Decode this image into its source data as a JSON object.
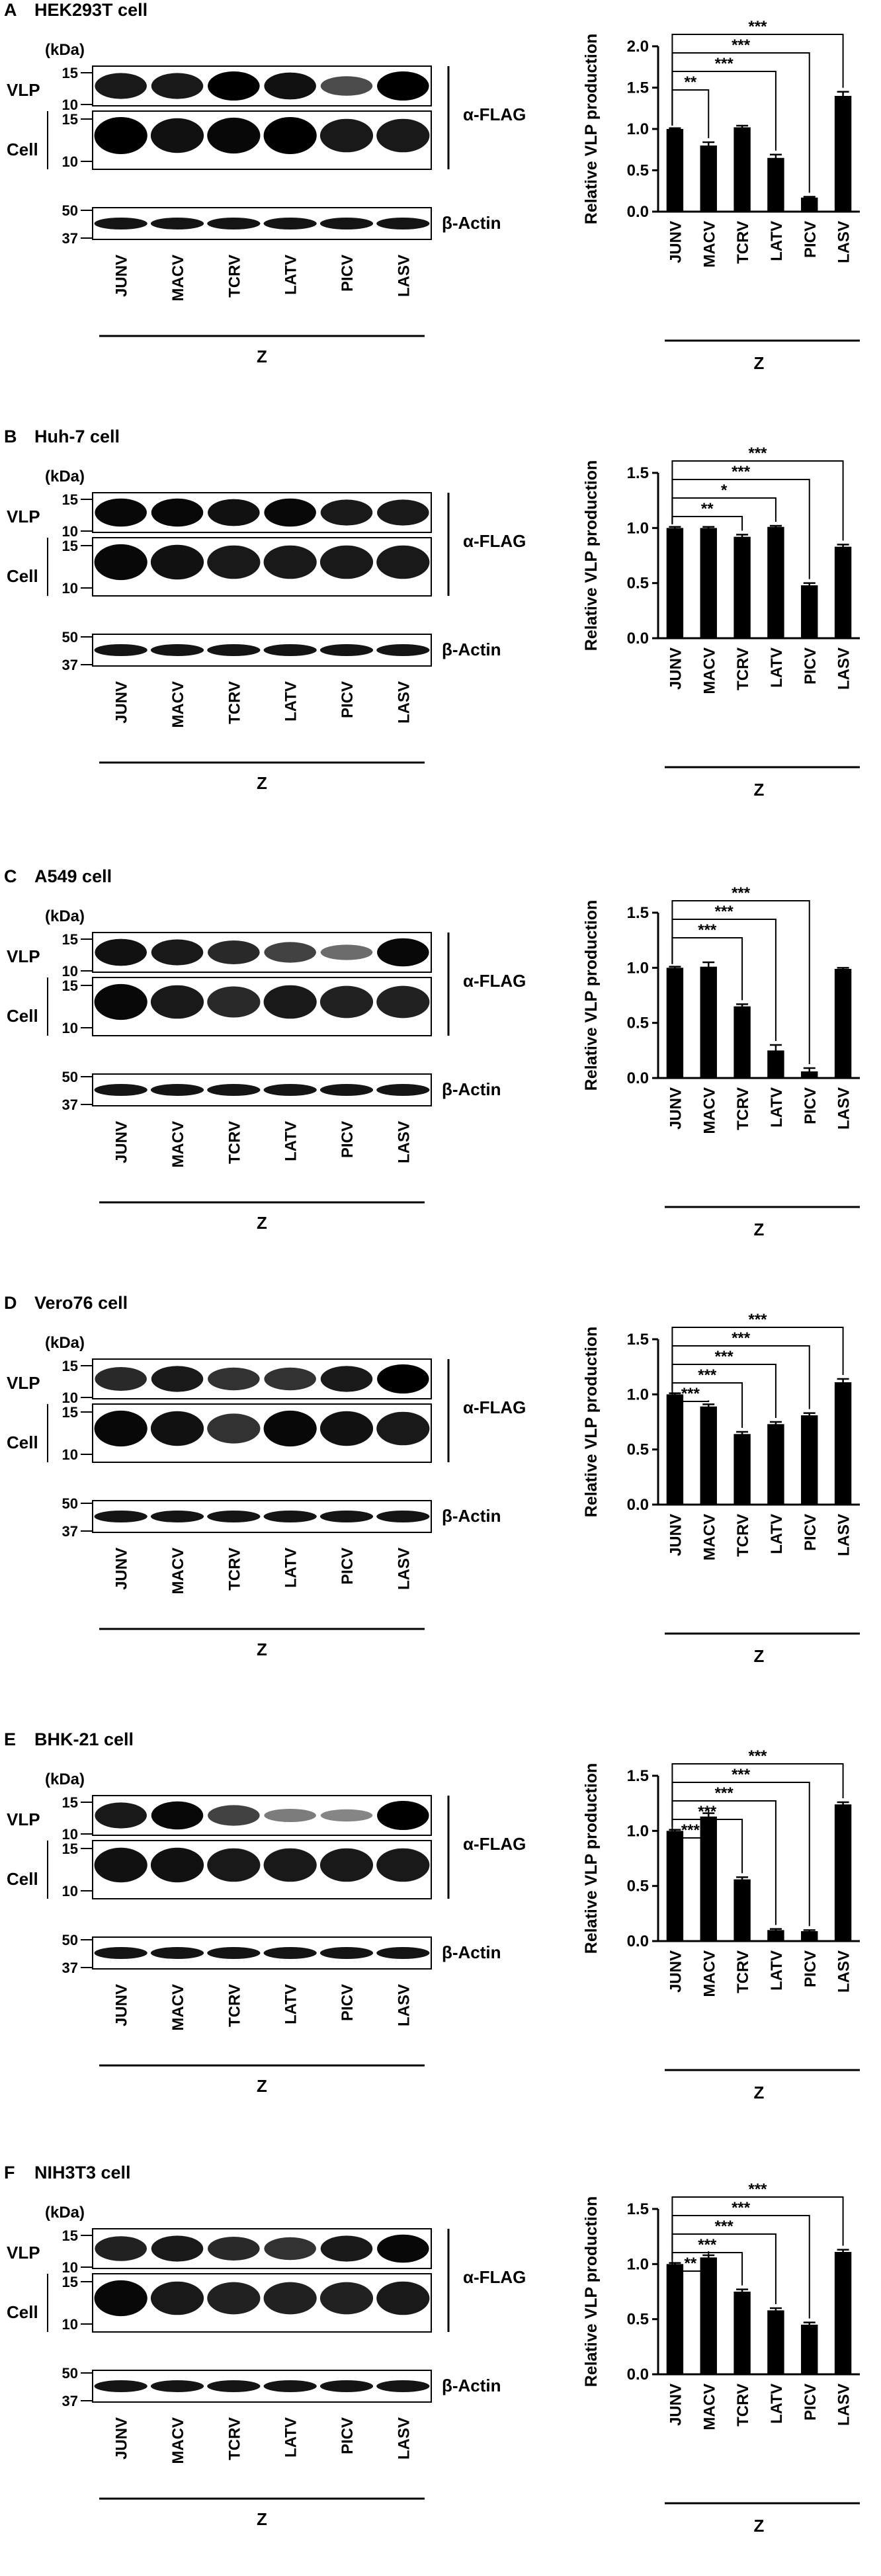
{
  "labels": {
    "kda": "(kDa)",
    "vlp": "VLP",
    "cell": "Cell",
    "flag": "α-FLAG",
    "actin": "β-Actin",
    "z": "Z",
    "ylabel": "Relative VLP production",
    "markers": [
      "15",
      "10",
      "15",
      "10",
      "50",
      "37"
    ]
  },
  "lanes": [
    "JUNV",
    "MACV",
    "TCRV",
    "LATV",
    "PICV",
    "LASV"
  ],
  "panels": [
    {
      "letter": "A",
      "title": "HEK293T cell"
    },
    {
      "letter": "B",
      "title": "Huh-7 cell"
    },
    {
      "letter": "C",
      "title": "A549 cell"
    },
    {
      "letter": "D",
      "title": "Vero76 cell"
    },
    {
      "letter": "E",
      "title": "BHK-21 cell"
    },
    {
      "letter": "F",
      "title": "NIH3T3 cell"
    }
  ],
  "blots": [
    {
      "vlp": [
        0.85,
        0.85,
        1.0,
        0.9,
        0.55,
        1.0
      ],
      "cell": [
        1.0,
        0.9,
        0.95,
        1.0,
        0.85,
        0.85
      ]
    },
    {
      "vlp": [
        0.95,
        0.95,
        0.9,
        0.95,
        0.85,
        0.85
      ],
      "cell": [
        0.95,
        0.9,
        0.85,
        0.85,
        0.85,
        0.85
      ]
    },
    {
      "vlp": [
        0.9,
        0.85,
        0.75,
        0.6,
        0.35,
        0.95
      ],
      "cell": [
        0.95,
        0.85,
        0.75,
        0.85,
        0.8,
        0.8
      ]
    },
    {
      "vlp": [
        0.75,
        0.85,
        0.7,
        0.7,
        0.85,
        1.0
      ],
      "cell": [
        0.95,
        0.9,
        0.7,
        0.95,
        0.9,
        0.85
      ]
    },
    {
      "vlp": [
        0.85,
        0.95,
        0.6,
        0.25,
        0.2,
        1.0
      ],
      "cell": [
        0.9,
        0.9,
        0.85,
        0.85,
        0.85,
        0.85
      ]
    },
    {
      "vlp": [
        0.8,
        0.85,
        0.75,
        0.7,
        0.85,
        0.95
      ],
      "cell": [
        0.95,
        0.85,
        0.8,
        0.8,
        0.8,
        0.85
      ]
    }
  ],
  "chart_data": [
    {
      "type": "bar",
      "panel": "A",
      "categories": [
        "JUNV",
        "MACV",
        "TCRV",
        "LATV",
        "PICV",
        "LASV"
      ],
      "values": [
        1.0,
        0.8,
        1.02,
        0.65,
        0.17,
        1.4
      ],
      "errors": [
        0.01,
        0.04,
        0.02,
        0.04,
        0.01,
        0.05
      ],
      "ylabel": "Relative VLP production",
      "xlabel": "Z",
      "ylim": [
        0,
        2.0
      ],
      "yticks": [
        "0.0",
        "0.5",
        "1.0",
        "1.5",
        "2.0"
      ],
      "ytick_values": [
        0,
        0.5,
        1.0,
        1.5,
        2.0
      ],
      "significance": [
        {
          "to": "MACV",
          "label": "**"
        },
        {
          "to": "LATV",
          "label": "***"
        },
        {
          "to": "PICV",
          "label": "***"
        },
        {
          "to": "LASV",
          "label": "***"
        }
      ]
    },
    {
      "type": "bar",
      "panel": "B",
      "categories": [
        "JUNV",
        "MACV",
        "TCRV",
        "LATV",
        "PICV",
        "LASV"
      ],
      "values": [
        1.0,
        1.0,
        0.92,
        1.01,
        0.48,
        0.83
      ],
      "errors": [
        0.01,
        0.01,
        0.02,
        0.01,
        0.02,
        0.02
      ],
      "ylabel": "Relative VLP production",
      "xlabel": "Z",
      "ylim": [
        0,
        1.5
      ],
      "yticks": [
        "0.0",
        "0.5",
        "1.0",
        "1.5"
      ],
      "ytick_values": [
        0,
        0.5,
        1.0,
        1.5
      ],
      "significance": [
        {
          "to": "TCRV",
          "label": "**"
        },
        {
          "to": "LATV",
          "label": "*"
        },
        {
          "to": "PICV",
          "label": "***"
        },
        {
          "to": "LASV",
          "label": "***"
        }
      ]
    },
    {
      "type": "bar",
      "panel": "C",
      "categories": [
        "JUNV",
        "MACV",
        "TCRV",
        "LATV",
        "PICV",
        "LASV"
      ],
      "values": [
        1.0,
        1.01,
        0.65,
        0.25,
        0.06,
        0.99
      ],
      "errors": [
        0.01,
        0.04,
        0.02,
        0.05,
        0.03,
        0.01
      ],
      "ylabel": "Relative VLP production",
      "xlabel": "Z",
      "ylim": [
        0,
        1.5
      ],
      "yticks": [
        "0.0",
        "0.5",
        "1.0",
        "1.5"
      ],
      "ytick_values": [
        0,
        0.5,
        1.0,
        1.5
      ],
      "significance": [
        {
          "to": "TCRV",
          "label": "***"
        },
        {
          "to": "LATV",
          "label": "***"
        },
        {
          "to": "PICV",
          "label": "***"
        }
      ]
    },
    {
      "type": "bar",
      "panel": "D",
      "categories": [
        "JUNV",
        "MACV",
        "TCRV",
        "LATV",
        "PICV",
        "LASV"
      ],
      "values": [
        1.0,
        0.89,
        0.64,
        0.73,
        0.81,
        1.11
      ],
      "errors": [
        0.01,
        0.02,
        0.02,
        0.02,
        0.02,
        0.03
      ],
      "ylabel": "Relative VLP production",
      "xlabel": "Z",
      "ylim": [
        0,
        1.5
      ],
      "yticks": [
        "0.0",
        "0.5",
        "1.0",
        "1.5"
      ],
      "ytick_values": [
        0,
        0.5,
        1.0,
        1.5
      ],
      "significance": [
        {
          "to": "MACV",
          "label": "***"
        },
        {
          "to": "TCRV",
          "label": "***"
        },
        {
          "to": "LATV",
          "label": "***"
        },
        {
          "to": "PICV",
          "label": "***"
        },
        {
          "to": "LASV",
          "label": "***"
        }
      ]
    },
    {
      "type": "bar",
      "panel": "E",
      "categories": [
        "JUNV",
        "MACV",
        "TCRV",
        "LATV",
        "PICV",
        "LASV"
      ],
      "values": [
        1.0,
        1.13,
        0.56,
        0.1,
        0.09,
        1.24
      ],
      "errors": [
        0.01,
        0.03,
        0.02,
        0.01,
        0.01,
        0.02
      ],
      "ylabel": "Relative VLP production",
      "xlabel": "Z",
      "ylim": [
        0,
        1.5
      ],
      "yticks": [
        "0.0",
        "0.5",
        "1.0",
        "1.5"
      ],
      "ytick_values": [
        0,
        0.5,
        1.0,
        1.5
      ],
      "significance": [
        {
          "to": "MACV",
          "label": "***"
        },
        {
          "to": "TCRV",
          "label": "***"
        },
        {
          "to": "LATV",
          "label": "***"
        },
        {
          "to": "PICV",
          "label": "***"
        },
        {
          "to": "LASV",
          "label": "***"
        }
      ]
    },
    {
      "type": "bar",
      "panel": "F",
      "categories": [
        "JUNV",
        "MACV",
        "TCRV",
        "LATV",
        "PICV",
        "LASV"
      ],
      "values": [
        1.0,
        1.06,
        0.75,
        0.58,
        0.45,
        1.11
      ],
      "errors": [
        0.01,
        0.02,
        0.02,
        0.02,
        0.02,
        0.02
      ],
      "ylabel": "Relative VLP production",
      "xlabel": "Z",
      "ylim": [
        0,
        1.5
      ],
      "yticks": [
        "0.0",
        "0.5",
        "1.0",
        "1.5"
      ],
      "ytick_values": [
        0,
        0.5,
        1.0,
        1.5
      ],
      "significance": [
        {
          "to": "MACV",
          "label": "**"
        },
        {
          "to": "TCRV",
          "label": "***"
        },
        {
          "to": "LATV",
          "label": "***"
        },
        {
          "to": "PICV",
          "label": "***"
        },
        {
          "to": "LASV",
          "label": "***"
        }
      ]
    }
  ]
}
